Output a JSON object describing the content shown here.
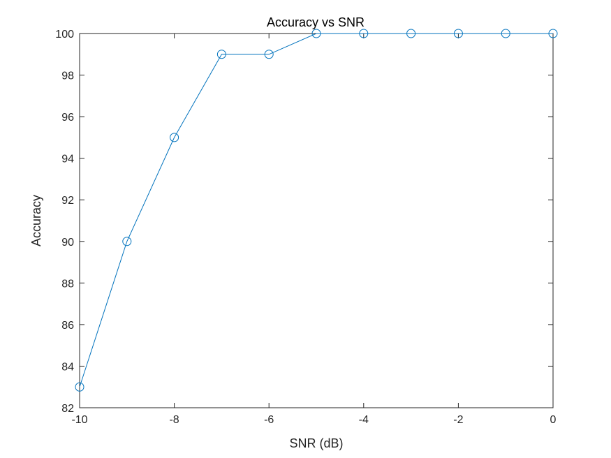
{
  "chart_data": {
    "type": "line",
    "title": "Accuracy vs SNR",
    "xlabel": "SNR (dB)",
    "ylabel": "Accuracy",
    "xlim": [
      -10,
      0
    ],
    "ylim": [
      82,
      100
    ],
    "xticks": [
      -10,
      -8,
      -6,
      -4,
      -2,
      0
    ],
    "yticks": [
      82,
      84,
      86,
      88,
      90,
      92,
      94,
      96,
      98,
      100
    ],
    "grid": false,
    "series": [
      {
        "name": "Accuracy",
        "color": "#0072BD",
        "marker": "circle",
        "x": [
          -10,
          -9,
          -8,
          -7,
          -6,
          -5,
          -4,
          -3,
          -2,
          -1,
          0
        ],
        "values": [
          83,
          90,
          95,
          99,
          99,
          100,
          100,
          100,
          100,
          100,
          100
        ]
      }
    ]
  }
}
